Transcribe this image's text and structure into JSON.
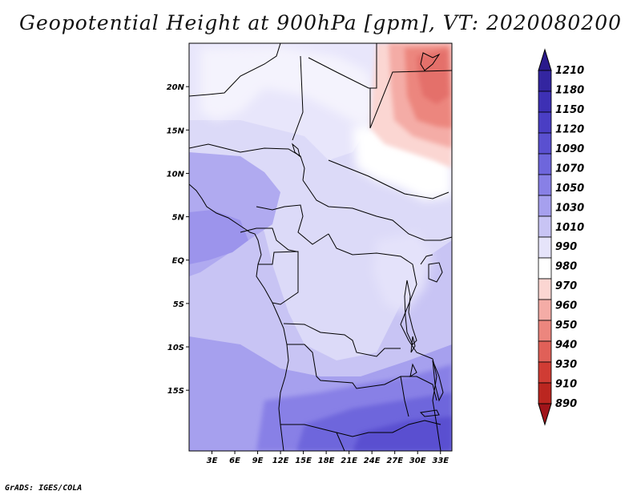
{
  "title": "Geopotential Height at 900hPa [gpm], VT: 2020080200",
  "credit": "GrADS: IGES/COLA",
  "map": {
    "variable": "Geopotential Height",
    "level": "900hPa",
    "units": "gpm",
    "valid_time": "2020080200",
    "lon_range": [
      0,
      34.5
    ],
    "lat_range": [
      -22,
      25
    ],
    "lat_ticks": [
      {
        "value": 20,
        "label": "20N"
      },
      {
        "value": 15,
        "label": "15N"
      },
      {
        "value": 10,
        "label": "10N"
      },
      {
        "value": 5,
        "label": "5N"
      },
      {
        "value": 0,
        "label": "EQ"
      },
      {
        "value": -5,
        "label": "5S"
      },
      {
        "value": -10,
        "label": "10S"
      },
      {
        "value": -15,
        "label": "15S"
      }
    ],
    "lon_ticks": [
      {
        "value": 3,
        "label": "3E"
      },
      {
        "value": 6,
        "label": "6E"
      },
      {
        "value": 9,
        "label": "9E"
      },
      {
        "value": 12,
        "label": "12E"
      },
      {
        "value": 15,
        "label": "15E"
      },
      {
        "value": 18,
        "label": "18E"
      },
      {
        "value": 21,
        "label": "21E"
      },
      {
        "value": 24,
        "label": "24E"
      },
      {
        "value": 27,
        "label": "27E"
      },
      {
        "value": 30,
        "label": "30E"
      },
      {
        "value": 33,
        "label": "33E"
      }
    ]
  },
  "colorbar": {
    "levels": [
      "1210",
      "1180",
      "1150",
      "1120",
      "1090",
      "1070",
      "1050",
      "1030",
      "1010",
      "990",
      "980",
      "970",
      "960",
      "950",
      "940",
      "930",
      "910",
      "890"
    ],
    "colors": [
      "#2a1a8c",
      "#3325a0",
      "#3d30b4",
      "#4a3ec4",
      "#5a50d0",
      "#6e66dc",
      "#8880e6",
      "#a6a0ee",
      "#c8c4f4",
      "#e6e4fa",
      "#ffffff",
      "#fbd6d2",
      "#f4aca6",
      "#ec867e",
      "#e06058",
      "#d03c34",
      "#bb2620",
      "#a0141a"
    ]
  },
  "colors": {
    "bg": "#ffffff",
    "border": "#000000"
  }
}
